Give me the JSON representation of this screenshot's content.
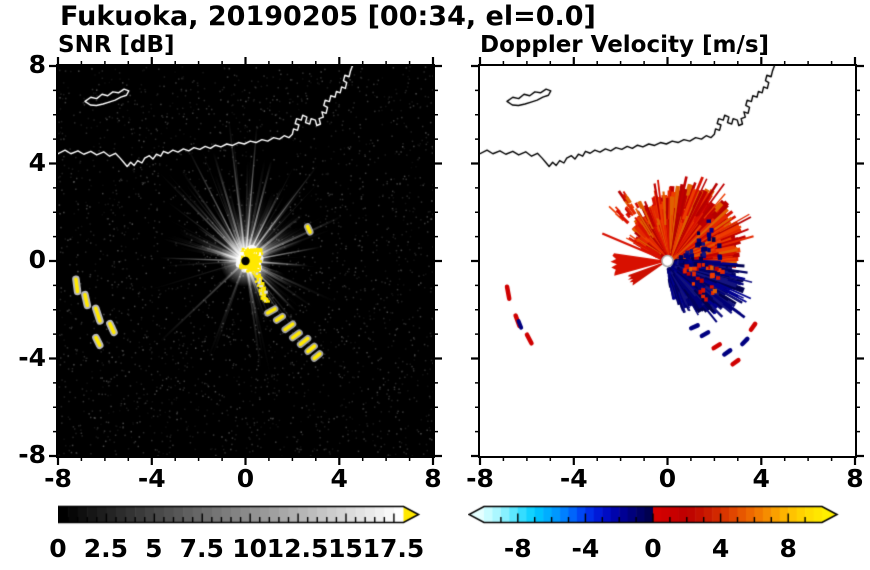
{
  "figure": {
    "title": "Fukuoka, 20190205 [00:34, el=0.0]",
    "accent_colors": {
      "echo_yellow": "#ffe800",
      "echo_red": "#d81000",
      "echo_navy": "#000070"
    }
  },
  "axes": {
    "x_major": [
      -8,
      -4,
      0,
      4,
      8
    ],
    "y_major": [
      8,
      4,
      0,
      -4,
      -8
    ],
    "x_labels": [
      "-8",
      "-4",
      "0",
      "4",
      "8"
    ],
    "y_labels": [
      "8",
      "4",
      "0",
      "-4",
      "-8"
    ],
    "minor_step": 1,
    "range": [
      -8,
      8
    ]
  },
  "chart_data": [
    {
      "type": "heatmap",
      "title": "SNR [dB]",
      "xlim": [
        -8,
        8
      ],
      "ylim": [
        -8,
        8
      ],
      "background": "#000000",
      "colorbar": {
        "range": [
          0,
          18
        ],
        "labels": [
          "0",
          "2.5",
          "5",
          "7.5",
          "10",
          "12.5",
          "15",
          "17.5"
        ],
        "label_values": [
          0,
          2.5,
          5,
          7.5,
          10,
          12.5,
          15,
          17.5
        ],
        "minor_step": 0.5,
        "major_step": 2.5,
        "start_color": "#000000",
        "end_color": "#ffffff",
        "over_color": "#ffe800"
      },
      "features": {
        "radar_center": [
          0,
          0
        ],
        "rays": {
          "count": 170,
          "bright": [
            [
              97,
              5.8
            ],
            [
              107,
              4.6
            ],
            [
              118,
              5.2
            ],
            [
              132,
              3.4
            ],
            [
              146,
              2.4
            ],
            [
              85,
              5.5
            ],
            [
              75,
              4.2
            ],
            [
              63,
              3.3
            ],
            [
              52,
              4.9
            ],
            [
              38,
              3.0
            ],
            [
              24,
              4.4
            ],
            [
              10,
              3.2
            ],
            [
              -4,
              2.6
            ],
            [
              -28,
              2.2
            ],
            [
              -44,
              2.9
            ],
            [
              -56,
              3.1
            ],
            [
              -66,
              2.3
            ],
            [
              178,
              3.6
            ],
            [
              162,
              2.0
            ]
          ]
        },
        "trail": {
          "from": [
            0.25,
            -0.1
          ],
          "to": [
            0.8,
            -1.6
          ]
        },
        "arc_echoes": [
          [
            1.1,
            -2.05,
            0.35
          ],
          [
            1.45,
            -2.35,
            0.3
          ],
          [
            1.85,
            -2.7,
            0.4
          ],
          [
            2.15,
            -3.05,
            0.35
          ],
          [
            2.5,
            -3.3,
            0.4
          ],
          [
            2.8,
            -3.6,
            0.35
          ],
          [
            3.05,
            -3.9,
            0.3
          ],
          [
            2.7,
            1.3,
            0.25
          ]
        ],
        "left_clutter": [
          [
            -7.2,
            -1.0,
            0.5
          ],
          [
            -6.8,
            -1.6,
            0.45
          ],
          [
            -6.3,
            -2.2,
            0.55
          ],
          [
            -5.7,
            -2.75,
            0.4
          ],
          [
            -6.3,
            -3.3,
            0.35
          ]
        ]
      }
    },
    {
      "type": "heatmap",
      "title": "Doppler Velocity [m/s]",
      "xlim": [
        -8,
        8
      ],
      "ylim": [
        -8,
        8
      ],
      "background": "#ffffff",
      "colorbar": {
        "range": [
          -10,
          10
        ],
        "labels": [
          "-8",
          "-4",
          "0",
          "4",
          "8"
        ],
        "label_values": [
          -8,
          -4,
          0,
          4,
          8
        ],
        "minor_step": 1,
        "major_step": 4,
        "under_color": "#e4ffff",
        "over_color": "#fff000",
        "stops": [
          [
            -10,
            "#d8ffff"
          ],
          [
            -9,
            "#9cf4ff"
          ],
          [
            -8,
            "#46e3ff"
          ],
          [
            -7,
            "#00ccff"
          ],
          [
            -6,
            "#00a4ff"
          ],
          [
            -5,
            "#0074ff"
          ],
          [
            -4,
            "#0038f0"
          ],
          [
            -3,
            "#0010d0"
          ],
          [
            -2,
            "#0000a0"
          ],
          [
            -1,
            "#000070"
          ],
          [
            -0.05,
            "#000048"
          ],
          [
            0.05,
            "#d80000"
          ],
          [
            1,
            "#cc0000"
          ],
          [
            2,
            "#bc0000"
          ],
          [
            3,
            "#c61400"
          ],
          [
            4,
            "#d62e00"
          ],
          [
            5,
            "#e44e00"
          ],
          [
            6,
            "#f07000"
          ],
          [
            7,
            "#f89600"
          ],
          [
            8,
            "#ffbc00"
          ],
          [
            9,
            "#ffd800"
          ],
          [
            10,
            "#ffec00"
          ]
        ]
      },
      "features": {
        "radar_center": [
          0,
          0
        ],
        "red_region": {
          "a0": -8,
          "a1": 152,
          "profile": [
            [
              -8,
              2.6
            ],
            [
              15,
              2.9
            ],
            [
              45,
              3.1
            ],
            [
              75,
              3.0
            ],
            [
              95,
              2.5
            ],
            [
              115,
              2.1
            ],
            [
              135,
              1.8
            ],
            [
              152,
              1.5
            ]
          ],
          "colors": [
            "#d81000",
            "#c00000",
            "#e42800",
            "#b60000",
            "#ee3c00",
            "#e06000"
          ]
        },
        "navy_region": {
          "a0": -80,
          "a1": -2,
          "profile": [
            [
              -80,
              1.4
            ],
            [
              -60,
              2.1
            ],
            [
              -45,
              2.7
            ],
            [
              -30,
              3.2
            ],
            [
              -15,
              3.0
            ],
            [
              -2,
              2.5
            ]
          ],
          "colors": [
            "#000060",
            "#000078",
            "#000090",
            "#000050",
            "#141480"
          ]
        },
        "wedges": [
          {
            "a0": 172,
            "a1": 195,
            "r0": 0.22,
            "r1": 2.3,
            "color": "#d81000"
          },
          {
            "a0": 199,
            "a1": 214,
            "r0": 0.22,
            "r1": 1.75,
            "color": "#cc0e00"
          }
        ],
        "thin_rays": [
          [
            158,
            0.3,
            3.0,
            "red",
            2.2
          ],
          [
            150,
            0.35,
            1.9,
            "red",
            2
          ],
          [
            97,
            2.35,
            3.35,
            "red",
            1.8
          ]
        ],
        "left_clutter": [
          [
            -6.8,
            -1.3,
            0.5
          ],
          [
            -6.4,
            -2.45,
            0.45
          ],
          [
            -5.9,
            -3.2,
            0.4
          ]
        ],
        "left_clutter_navy": [
          [
            -6.3,
            -2.6,
            0.3
          ]
        ],
        "spot_echoes": [
          [
            1.6,
            -3.0,
            "navy"
          ],
          [
            2.1,
            -3.5,
            "red"
          ],
          [
            2.55,
            -3.75,
            "navy"
          ],
          [
            3.3,
            -3.3,
            "navy"
          ],
          [
            3.65,
            -2.7,
            "red"
          ],
          [
            2.9,
            -4.15,
            "red"
          ],
          [
            1.15,
            -2.7,
            "navy"
          ]
        ]
      }
    }
  ],
  "coastline": {
    "main": [
      [
        -8.0,
        4.4
      ],
      [
        -7.7,
        4.55
      ],
      [
        -7.45,
        4.4
      ],
      [
        -7.15,
        4.52
      ],
      [
        -6.9,
        4.38
      ],
      [
        -6.6,
        4.5
      ],
      [
        -6.35,
        4.35
      ],
      [
        -6.05,
        4.48
      ],
      [
        -5.8,
        4.3
      ],
      [
        -5.55,
        4.42
      ],
      [
        -5.35,
        4.22
      ],
      [
        -5.2,
        4.05
      ],
      [
        -5.05,
        3.88
      ],
      [
        -4.9,
        4.05
      ],
      [
        -4.75,
        3.92
      ],
      [
        -4.6,
        4.12
      ],
      [
        -4.42,
        4.02
      ],
      [
        -4.3,
        4.22
      ],
      [
        -4.1,
        4.32
      ],
      [
        -3.95,
        4.18
      ],
      [
        -3.8,
        4.38
      ],
      [
        -3.62,
        4.3
      ],
      [
        -3.5,
        4.5
      ],
      [
        -3.3,
        4.42
      ],
      [
        -3.1,
        4.55
      ],
      [
        -2.88,
        4.47
      ],
      [
        -2.65,
        4.6
      ],
      [
        -2.42,
        4.52
      ],
      [
        -2.2,
        4.65
      ],
      [
        -1.95,
        4.58
      ],
      [
        -1.72,
        4.7
      ],
      [
        -1.5,
        4.62
      ],
      [
        -1.28,
        4.75
      ],
      [
        -1.05,
        4.68
      ],
      [
        -0.8,
        4.8
      ],
      [
        -0.55,
        4.74
      ],
      [
        -0.3,
        4.86
      ],
      [
        -0.05,
        4.8
      ],
      [
        0.2,
        4.92
      ],
      [
        0.45,
        4.86
      ],
      [
        0.7,
        4.98
      ],
      [
        0.95,
        4.92
      ],
      [
        1.2,
        5.06
      ],
      [
        1.45,
        5.0
      ],
      [
        1.65,
        5.14
      ],
      [
        1.85,
        5.06
      ],
      [
        2.0,
        5.2
      ],
      [
        2.05,
        5.42
      ],
      [
        2.22,
        5.36
      ],
      [
        2.28,
        5.58
      ],
      [
        2.12,
        5.64
      ],
      [
        2.18,
        5.84
      ],
      [
        2.38,
        5.78
      ],
      [
        2.44,
        5.98
      ],
      [
        2.62,
        5.9
      ],
      [
        2.56,
        5.68
      ],
      [
        2.74,
        5.62
      ],
      [
        2.8,
        5.84
      ],
      [
        2.98,
        5.78
      ],
      [
        3.04,
        5.56
      ],
      [
        3.2,
        5.62
      ],
      [
        3.14,
        5.84
      ],
      [
        3.32,
        5.9
      ],
      [
        3.26,
        6.12
      ],
      [
        3.44,
        6.06
      ],
      [
        3.5,
        6.3
      ],
      [
        3.34,
        6.38
      ],
      [
        3.4,
        6.6
      ],
      [
        3.58,
        6.54
      ],
      [
        3.64,
        6.78
      ],
      [
        3.82,
        6.72
      ],
      [
        3.88,
        6.96
      ],
      [
        4.04,
        6.9
      ],
      [
        4.1,
        7.14
      ],
      [
        4.26,
        7.08
      ],
      [
        4.32,
        7.32
      ],
      [
        4.18,
        7.4
      ],
      [
        4.24,
        7.62
      ],
      [
        4.42,
        7.56
      ],
      [
        4.48,
        7.8
      ],
      [
        4.56,
        8.0
      ]
    ],
    "island": [
      [
        -6.85,
        6.55
      ],
      [
        -6.6,
        6.72
      ],
      [
        -6.35,
        6.66
      ],
      [
        -6.12,
        6.84
      ],
      [
        -5.88,
        6.78
      ],
      [
        -5.66,
        6.94
      ],
      [
        -5.42,
        6.9
      ],
      [
        -5.18,
        7.05
      ],
      [
        -4.98,
        6.98
      ],
      [
        -5.08,
        6.8
      ],
      [
        -5.32,
        6.72
      ],
      [
        -5.56,
        6.6
      ],
      [
        -5.82,
        6.52
      ],
      [
        -6.08,
        6.44
      ],
      [
        -6.36,
        6.38
      ],
      [
        -6.62,
        6.4
      ],
      [
        -6.85,
        6.55
      ]
    ]
  }
}
